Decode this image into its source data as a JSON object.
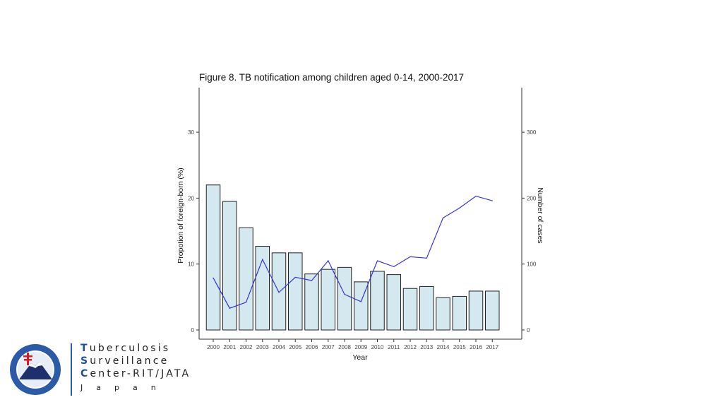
{
  "chart_data": {
    "type": "bar+line",
    "title": "Figure 8. TB notification among children aged 0-14, 2000-2017",
    "xlabel": "Year",
    "ylabel_left": "Propotion of foreign-born (%)",
    "ylabel_right": "Number of cases",
    "categories": [
      "2000",
      "2001",
      "2002",
      "2003",
      "2004",
      "2005",
      "2006",
      "2007",
      "2008",
      "2009",
      "2010",
      "2011",
      "2012",
      "2013",
      "2014",
      "2015",
      "2016",
      "2017"
    ],
    "left_axis": {
      "ylim": [
        0,
        36
      ],
      "ticks": [
        0,
        10,
        20,
        30
      ],
      "tick_labels": [
        "0",
        "10",
        "20",
        "30"
      ]
    },
    "right_axis": {
      "ylim": [
        0,
        360
      ],
      "ticks": [
        0,
        100,
        200,
        300
      ],
      "tick_labels": [
        "0",
        "100",
        "200",
        "300"
      ]
    },
    "bars": {
      "axis": "left",
      "fill": "#d4e8f0",
      "stroke": "#222222",
      "values": [
        22.0,
        19.5,
        15.5,
        12.7,
        11.7,
        11.7,
        8.5,
        9.2,
        9.5,
        7.3,
        8.9,
        8.4,
        6.3,
        6.6,
        4.9,
        5.1,
        5.9,
        5.9
      ]
    },
    "line": {
      "axis": "right",
      "color": "#3333dd",
      "values": [
        79,
        33,
        42,
        107,
        57,
        80,
        75,
        105,
        54,
        43,
        105,
        96,
        111,
        109,
        170,
        185,
        203,
        196
      ]
    },
    "grid": false
  },
  "footer": {
    "org_lines": [
      {
        "cap": "T",
        "rest": "uberculosis"
      },
      {
        "cap": "S",
        "rest": "urveillance"
      },
      {
        "cap": "C",
        "rest": "enter-RIT/JATA"
      }
    ],
    "country": "Japan"
  },
  "colors": {
    "accent": "#1f4e9c",
    "logo_ring": "#2a5aa8",
    "cross": "#d42020"
  }
}
